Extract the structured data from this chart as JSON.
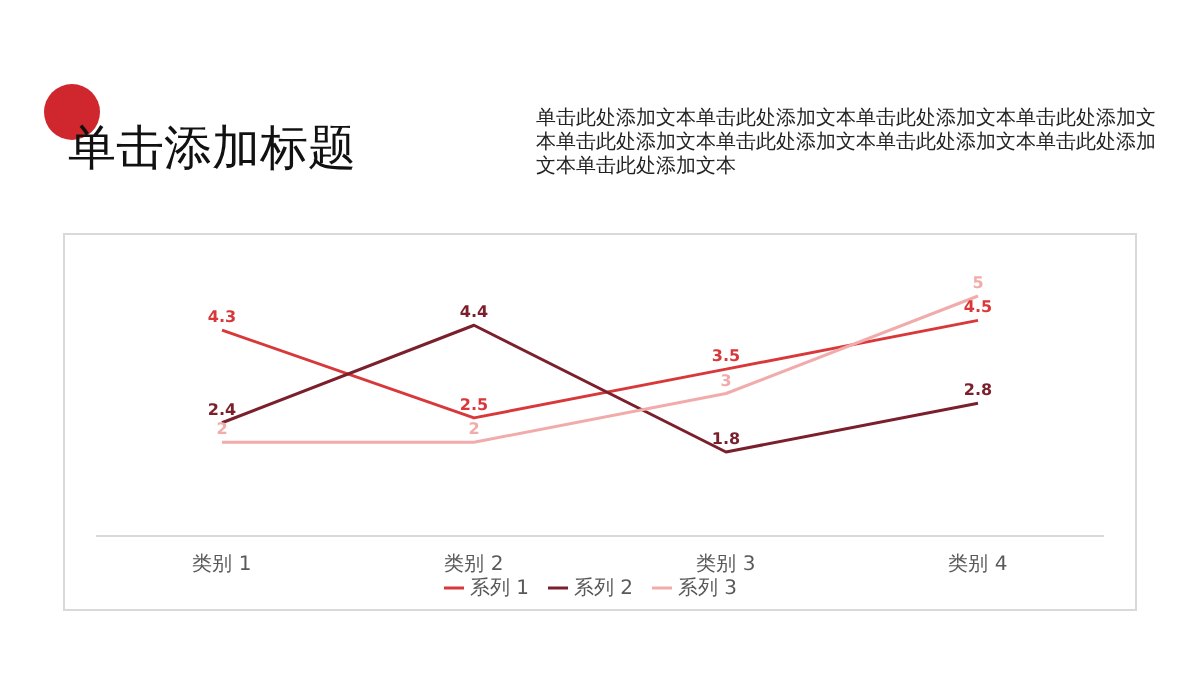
{
  "chart_data": {
    "type": "line",
    "title": "单击添加标题",
    "subtitle": "单击此处添加文本单击此处添加文本单击此处添加文本单击此处添加文本单击此处添加文本单击此处添加文本单击此处添加文本单击此处添加文本单击此处添加文本",
    "categories": [
      "类别 1",
      "类别 2",
      "类别 3",
      "类别 4"
    ],
    "series": [
      {
        "name": "系列 1",
        "color": "#d9383a",
        "values": [
          4.3,
          2.5,
          3.5,
          4.5
        ]
      },
      {
        "name": "系列 2",
        "color": "#7a1f2b",
        "values": [
          2.4,
          4.4,
          1.8,
          2.8
        ]
      },
      {
        "name": "系列 3",
        "color": "#f2abab",
        "values": [
          2,
          2,
          3,
          5
        ]
      }
    ],
    "data_labels": true,
    "legend": "bottom",
    "marker": "none",
    "line_style": "solid"
  }
}
